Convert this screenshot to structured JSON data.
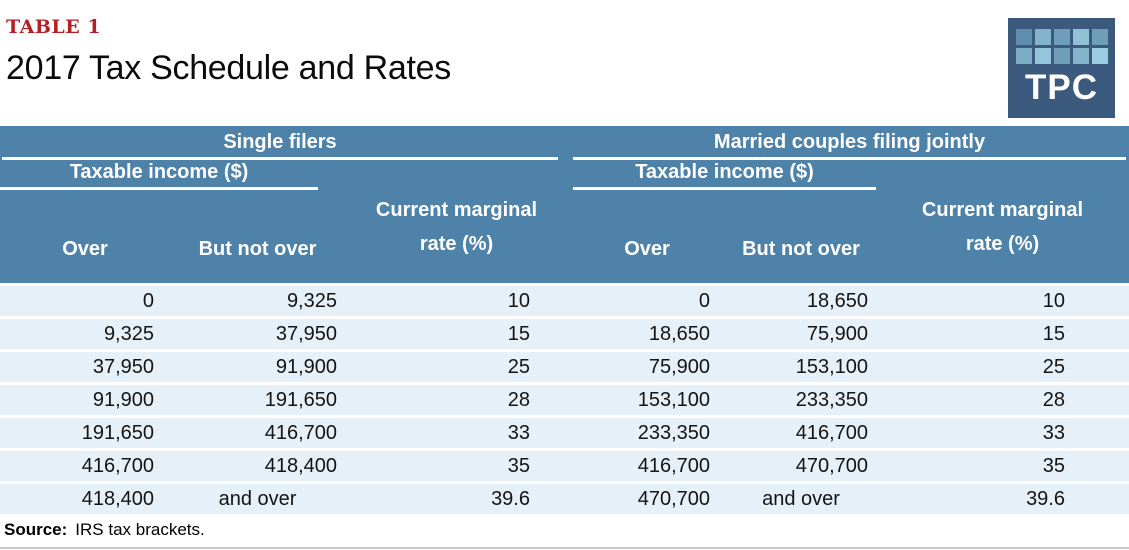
{
  "title": {
    "label": "TABLE 1",
    "heading": "2017 Tax Schedule and Rates"
  },
  "logo": {
    "text": "TPC"
  },
  "source": {
    "label": "Source:",
    "text": "IRS tax brackets."
  },
  "colors": {
    "header_blue": "#4e82a8",
    "row_blue": "#e6f0f8",
    "title_red": "#b32025",
    "logo_navy": "#3c5a7e",
    "body_text": "#141414",
    "rule_gray": "#c6c6c6",
    "logo_squares": [
      "#608dac",
      "#83b4cb",
      "#6f9eb9",
      "#8fc2d7",
      "#6f9eb9",
      "#7cadc5",
      "#93c6da",
      "#6f9eb9",
      "#83b4cb",
      "#9bcde0"
    ]
  },
  "chart_data": {
    "type": "table",
    "title": "2017 Tax Schedule and Rates",
    "groups": [
      {
        "name": "Single filers",
        "column_group": "Taxable income ($)",
        "columns": [
          "Over",
          "But not over",
          "Current marginal rate (%)"
        ],
        "rows": [
          [
            "0",
            "9,325",
            "10"
          ],
          [
            "9,325",
            "37,950",
            "15"
          ],
          [
            "37,950",
            "91,900",
            "25"
          ],
          [
            "91,900",
            "191,650",
            "28"
          ],
          [
            "191,650",
            "416,700",
            "33"
          ],
          [
            "416,700",
            "418,400",
            "35"
          ],
          [
            "418,400",
            "and over",
            "39.6"
          ]
        ]
      },
      {
        "name": "Married couples filing jointly",
        "column_group": "Taxable income ($)",
        "columns": [
          "Over",
          "But not over",
          "Current marginal rate (%)"
        ],
        "rows": [
          [
            "0",
            "18,650",
            "10"
          ],
          [
            "18,650",
            "75,900",
            "15"
          ],
          [
            "75,900",
            "153,100",
            "25"
          ],
          [
            "153,100",
            "233,350",
            "28"
          ],
          [
            "233,350",
            "416,700",
            "33"
          ],
          [
            "416,700",
            "470,700",
            "35"
          ],
          [
            "470,700",
            "and over",
            "39.6"
          ]
        ]
      }
    ]
  }
}
